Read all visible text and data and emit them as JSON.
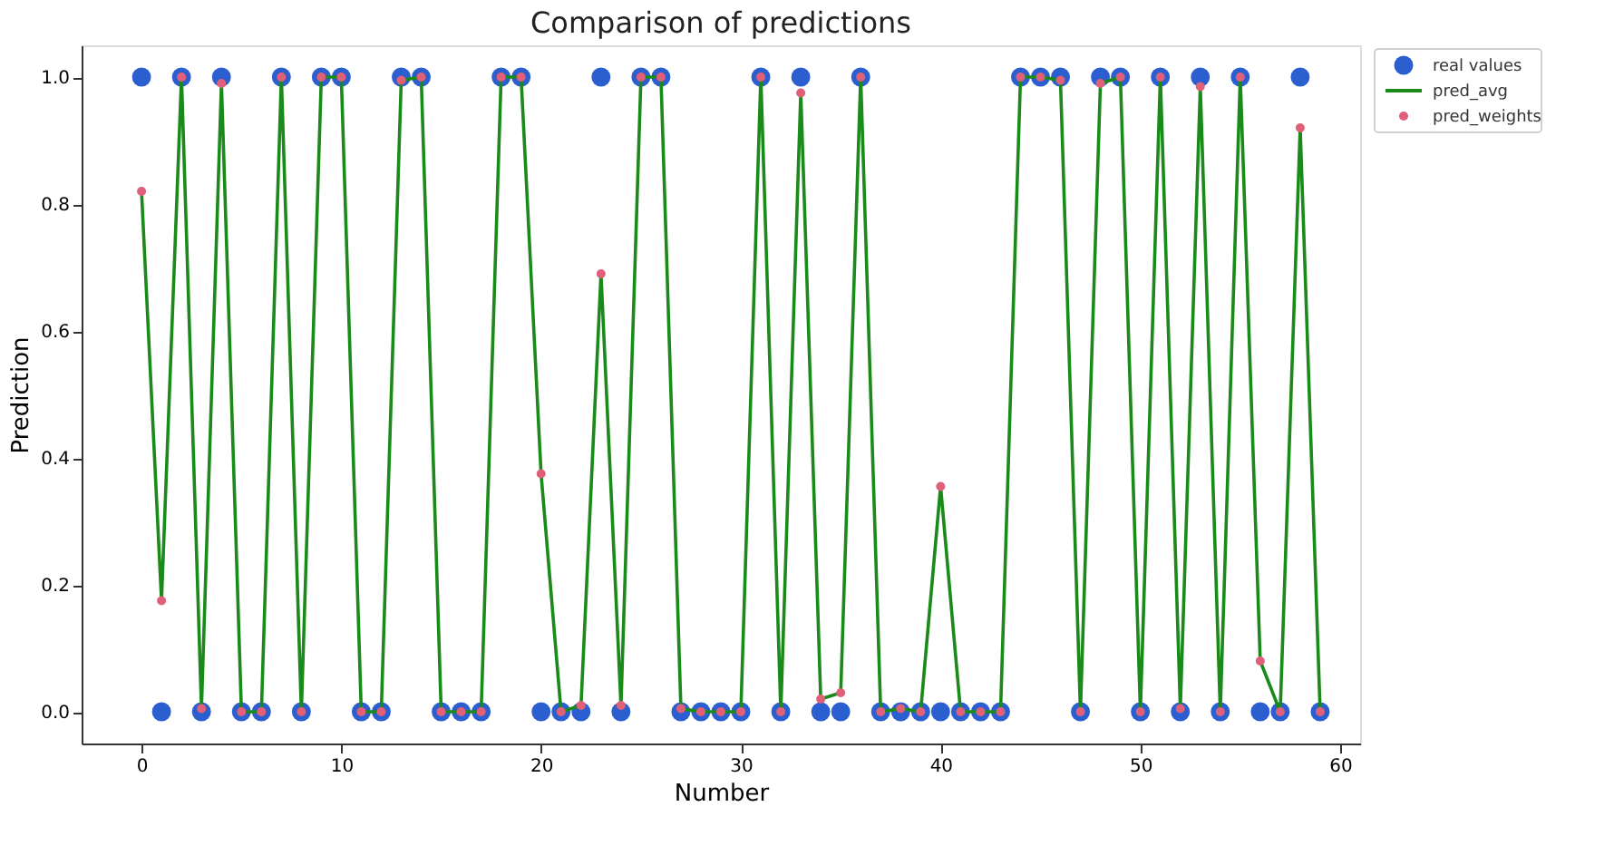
{
  "chart_data": {
    "type": "scatter",
    "title": "Comparison of predictions",
    "xlabel": "Number",
    "ylabel": "Prediction",
    "x": [
      0,
      1,
      2,
      3,
      4,
      5,
      6,
      7,
      8,
      9,
      10,
      11,
      12,
      13,
      14,
      15,
      16,
      17,
      18,
      19,
      20,
      21,
      22,
      23,
      24,
      25,
      26,
      27,
      28,
      29,
      30,
      31,
      32,
      33,
      34,
      35,
      36,
      37,
      38,
      39,
      40,
      41,
      42,
      43,
      44,
      45,
      46,
      47,
      48,
      49,
      50,
      51,
      52,
      53,
      54,
      55,
      56,
      57,
      58,
      59
    ],
    "series": [
      {
        "name": "real values",
        "marker": "circle",
        "color": "#2b5fcf",
        "values": [
          1,
          0,
          1,
          0,
          1,
          0,
          0,
          1,
          0,
          1,
          1,
          0,
          0,
          1,
          1,
          0,
          0,
          0,
          1,
          1,
          0,
          0,
          0,
          1,
          0,
          1,
          1,
          0,
          0,
          0,
          0,
          1,
          0,
          1,
          0,
          0,
          1,
          0,
          0,
          0,
          0,
          0,
          0,
          0,
          1,
          1,
          1,
          0,
          1,
          1,
          0,
          1,
          0,
          1,
          0,
          1,
          0,
          0,
          1,
          0
        ]
      },
      {
        "name": "pred_avg",
        "type": "line",
        "marker": "none",
        "color": "#1a8a1a",
        "values": [
          0.82,
          0.175,
          1,
          0.005,
          0.99,
          0,
          0,
          1,
          0,
          1,
          1,
          0,
          0,
          0.995,
          1,
          0,
          0,
          0,
          1,
          1,
          0.375,
          0,
          0.01,
          0.69,
          0.01,
          1,
          1,
          0.005,
          0,
          0,
          0,
          1,
          0,
          0.975,
          0.02,
          0.03,
          1,
          0,
          0.005,
          0,
          0.355,
          0,
          0,
          0,
          1,
          1,
          0.995,
          0,
          0.99,
          1,
          0,
          1,
          0.005,
          0.985,
          0,
          1,
          0.08,
          0,
          0.92,
          0
        ]
      },
      {
        "name": "pred_weights",
        "marker": "circle",
        "color": "#e0607a",
        "values": [
          0.82,
          0.175,
          1,
          0.005,
          0.99,
          0,
          0,
          1,
          0,
          1,
          1,
          0,
          0,
          0.995,
          1,
          0,
          0,
          0,
          1,
          1,
          0.375,
          0,
          0.01,
          0.69,
          0.01,
          1,
          1,
          0.005,
          0,
          0,
          0,
          1,
          0,
          0.975,
          0.02,
          0.03,
          1,
          0,
          0.005,
          0,
          0.355,
          0,
          0,
          0,
          1,
          1,
          0.995,
          0,
          0.99,
          1,
          0,
          1,
          0.005,
          0.985,
          0,
          1,
          0.08,
          0,
          0.92,
          0
        ]
      }
    ],
    "xlim": [
      -3,
      61
    ],
    "xticks": [
      0,
      10,
      20,
      30,
      40,
      50,
      60
    ],
    "ylim": [
      -0.05,
      1.05
    ],
    "yticks": [
      {
        "value": 0,
        "label": "0.0"
      },
      {
        "value": 0.2,
        "label": "0.2"
      },
      {
        "value": 0.4,
        "label": "0.4"
      },
      {
        "value": 0.6,
        "label": "0.6"
      },
      {
        "value": 0.8,
        "label": "0.8"
      },
      {
        "value": 1,
        "label": "1.0"
      }
    ],
    "grid": false,
    "legend": "top right"
  }
}
